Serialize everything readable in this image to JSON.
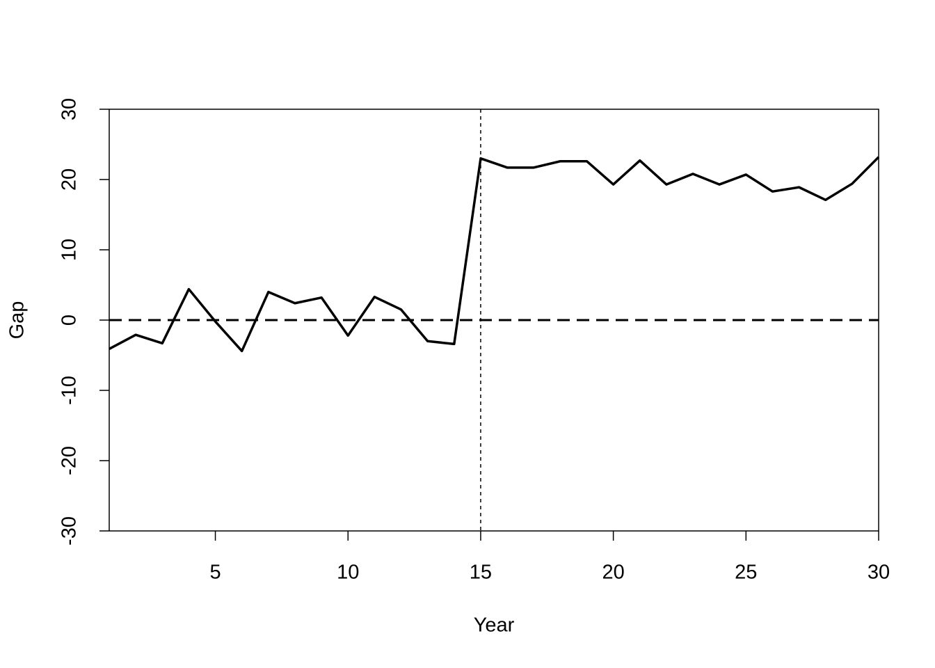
{
  "chart_data": {
    "type": "line",
    "x_label": "Year",
    "y_label": "Gap",
    "x": [
      1,
      2,
      3,
      4,
      5,
      6,
      7,
      8,
      9,
      10,
      11,
      12,
      13,
      14,
      15,
      16,
      17,
      18,
      19,
      20,
      21,
      22,
      23,
      24,
      25,
      26,
      27,
      28,
      29,
      30
    ],
    "series": [
      {
        "color": "#000000",
        "values": [
          -4.1,
          -2.1,
          -3.3,
          4.4,
          -0.2,
          -4.4,
          4.0,
          2.4,
          3.2,
          -2.2,
          3.3,
          1.5,
          -3.0,
          -3.4,
          23.0,
          21.7,
          21.7,
          22.6,
          22.6,
          19.3,
          22.7,
          19.3,
          20.8,
          19.3,
          20.7,
          18.3,
          18.9,
          17.1,
          19.4,
          23.2
        ]
      }
    ],
    "hline": 0,
    "vline": 15,
    "xlim": [
      1,
      30
    ],
    "xticks": [
      5,
      10,
      15,
      20,
      25,
      30
    ],
    "ylim": [
      -30,
      30
    ],
    "yticks": [
      -30,
      -20,
      -10,
      0,
      10,
      20,
      30
    ]
  }
}
